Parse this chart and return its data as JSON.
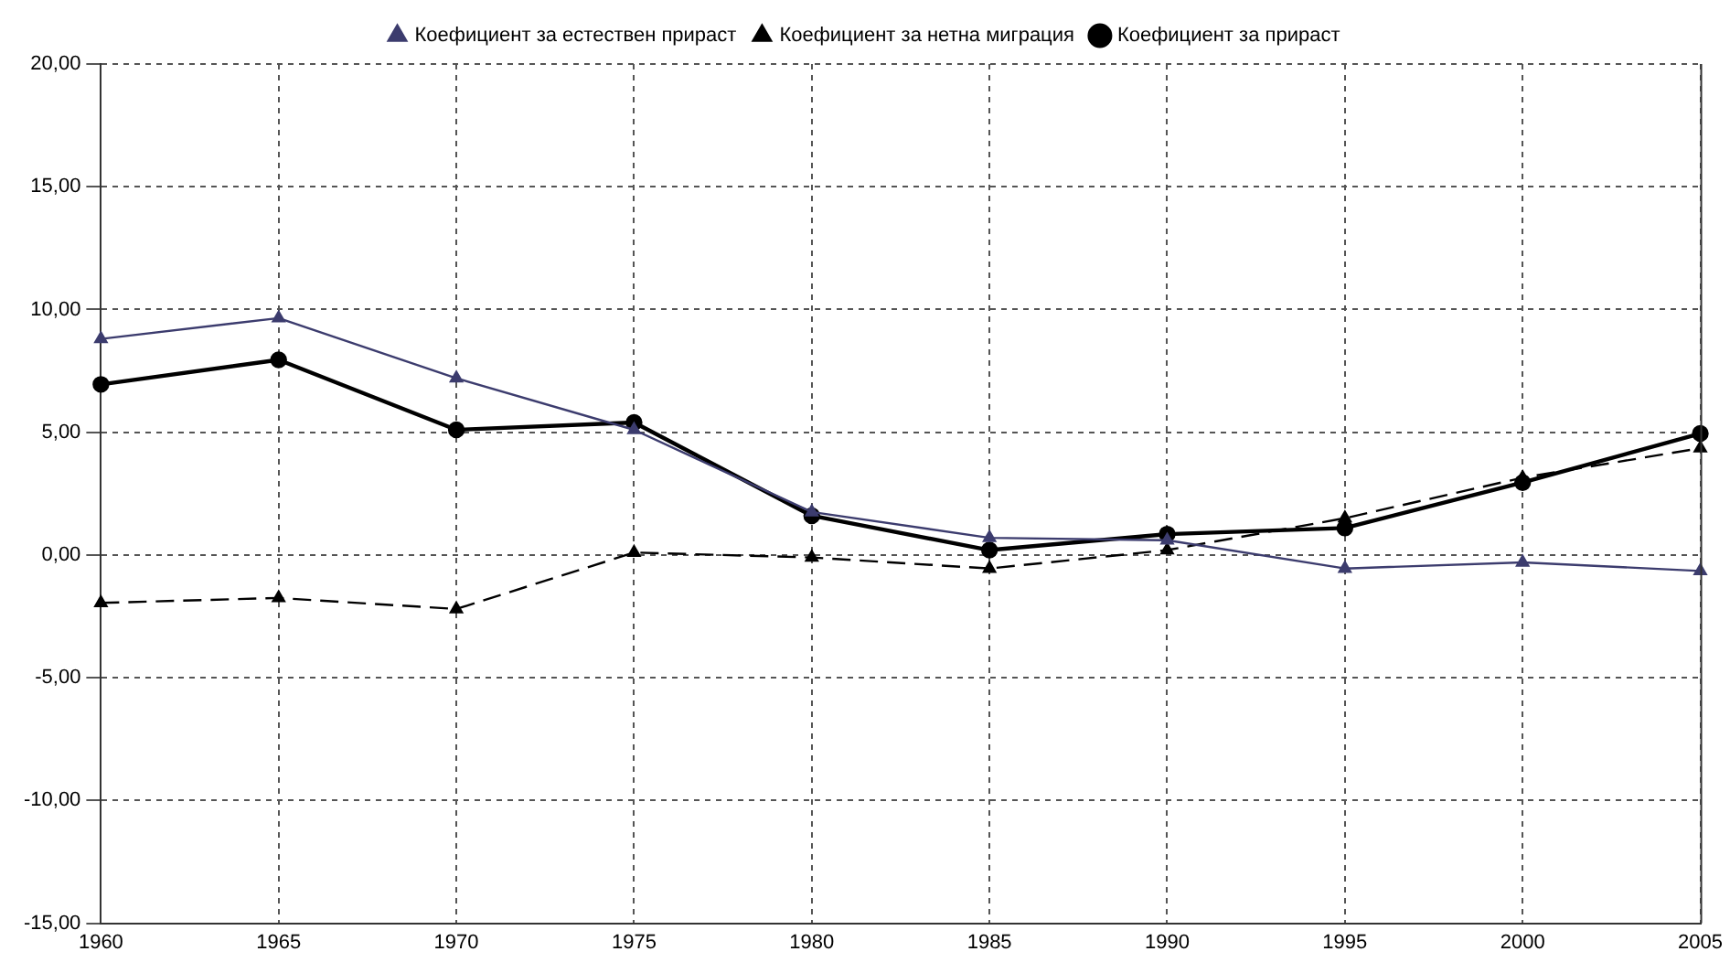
{
  "chart_data": {
    "type": "line",
    "categories": [
      "1960",
      "1965",
      "1970",
      "1975",
      "1980",
      "1985",
      "1990",
      "1995",
      "2000",
      "2005"
    ],
    "series": [
      {
        "name": "Коефициент за естествен прираст",
        "color": "#3c3c6e",
        "marker": "triangle",
        "line_style": "solid",
        "values": [
          8.8,
          9.65,
          7.2,
          5.1,
          1.75,
          0.7,
          0.6,
          -0.55,
          -0.3,
          -0.65
        ]
      },
      {
        "name": "Коефициент за нетна миграция",
        "color": "#000000",
        "marker": "triangle",
        "line_style": "dashed",
        "values": [
          -1.95,
          -1.75,
          -2.2,
          0.1,
          -0.1,
          -0.55,
          0.2,
          1.5,
          3.15,
          4.35
        ]
      },
      {
        "name": "Коефициент за прираст",
        "color": "#000000",
        "marker": "circle",
        "line_style": "solid",
        "values": [
          6.95,
          7.95,
          5.1,
          5.4,
          1.6,
          0.2,
          0.85,
          1.1,
          2.95,
          4.95
        ]
      }
    ],
    "ylim": [
      -15,
      20
    ],
    "yticks": [
      {
        "value": -15,
        "label": "-15,00"
      },
      {
        "value": -10,
        "label": "-10,00"
      },
      {
        "value": -5,
        "label": "-5,00"
      },
      {
        "value": 0,
        "label": "0,00"
      },
      {
        "value": 5,
        "label": "5,00"
      },
      {
        "value": 10,
        "label": "10,00"
      },
      {
        "value": 15,
        "label": "15,00"
      },
      {
        "value": 20,
        "label": "20,00"
      }
    ],
    "grid": true,
    "legend": "top"
  }
}
